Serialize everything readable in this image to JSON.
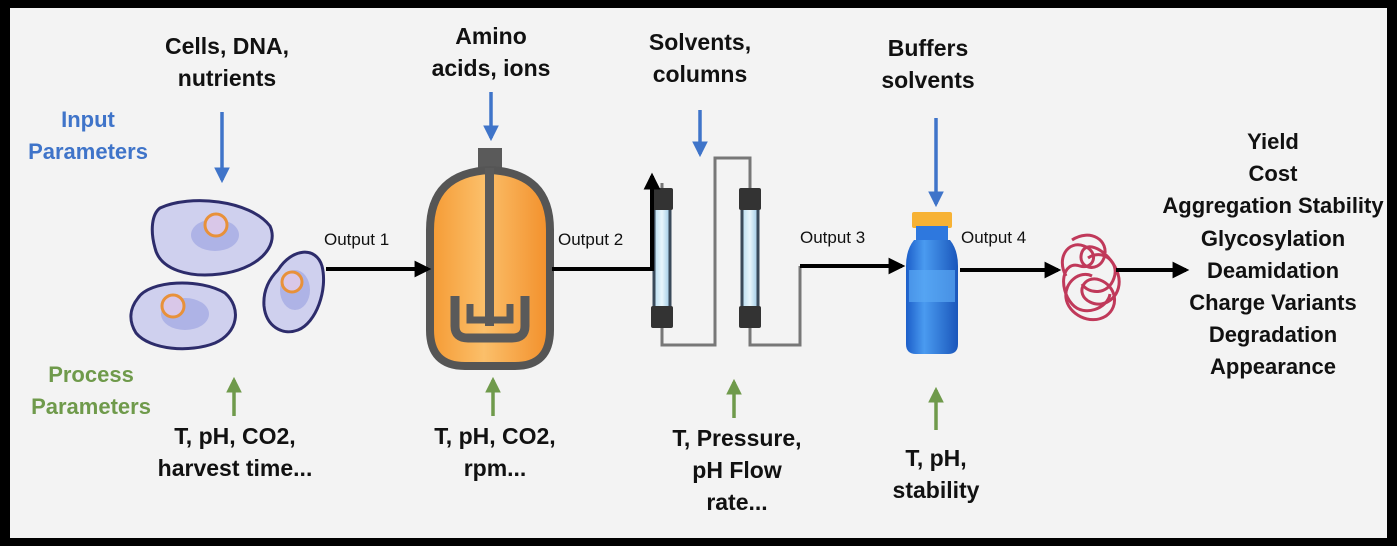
{
  "side_labels": {
    "input": [
      "Input",
      "Parameters"
    ],
    "process": [
      "Process",
      "Parameters"
    ]
  },
  "inputs": [
    [
      "Cells, DNA,",
      "nutrients"
    ],
    [
      "Amino",
      "acids, ions"
    ],
    [
      "Solvents,",
      "columns"
    ],
    [
      "Buffers",
      "solvents"
    ]
  ],
  "process": [
    [
      "T, pH, CO2,",
      "harvest time..."
    ],
    [
      "T, pH, CO2,",
      "rpm..."
    ],
    [
      "T, Pressure,",
      "pH Flow",
      "rate..."
    ],
    [
      "T, pH,",
      "stability"
    ]
  ],
  "outputs": [
    "Output 1",
    "Output 2",
    "Output 3",
    "Output 4"
  ],
  "results": [
    "Yield",
    "Cost",
    "Aggregation Stability",
    "Glycosylation",
    "Deamidation",
    "Charge Variants",
    "Degradation",
    "Appearance"
  ],
  "colors": {
    "input_arrow": "#3f74c9",
    "process_arrow": "#6f9a4b",
    "cell_fill": "#cfd0ee",
    "cell_stroke": "#2d2c6b",
    "bioreactor_orange": "#f6a445",
    "protein": "#c0395a",
    "vial_blue": "#2b7de0",
    "vial_cap": "#f7b234"
  }
}
